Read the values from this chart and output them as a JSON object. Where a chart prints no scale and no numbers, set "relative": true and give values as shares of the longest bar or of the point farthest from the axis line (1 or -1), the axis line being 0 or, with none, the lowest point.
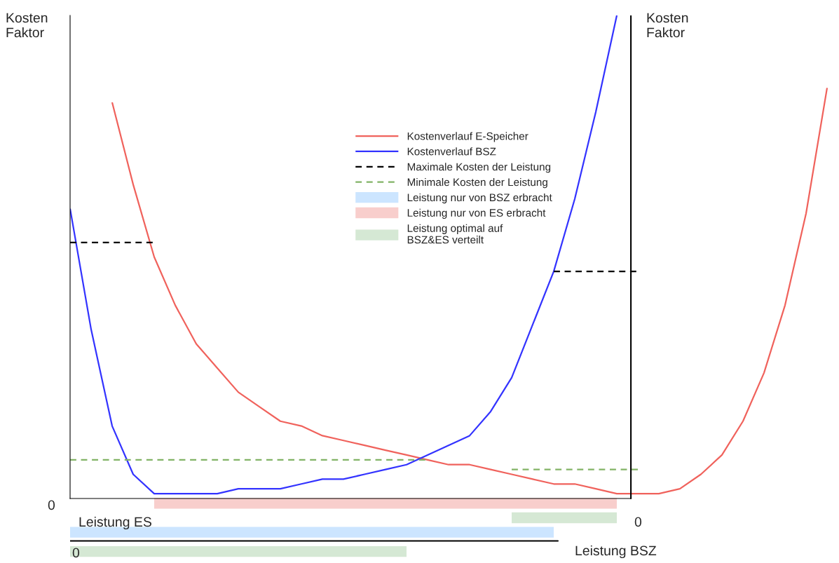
{
  "chart_data": {
    "type": "line",
    "relative": true,
    "ylabel": "Kosten\nFaktor",
    "y2label": "Kosten\nFaktor",
    "xlabel": "Leistung BSZ",
    "legend": "center",
    "categories": [
      null,
      null,
      null,
      null,
      null,
      null,
      null,
      null,
      null,
      null,
      null,
      null,
      null,
      null,
      null,
      null,
      null,
      null,
      null,
      null,
      null,
      null,
      null,
      null,
      null,
      null,
      null,
      null,
      null,
      null,
      null,
      null,
      null,
      null,
      null,
      null,
      null
    ],
    "annotations": [
      "0",
      "Leistung ES",
      "0",
      "0"
    ],
    "series": [
      {
        "name": "Kostenverlauf E-Speicher",
        "color": "#f0625c",
        "values": [
          null,
          null,
          0.82,
          0.65,
          0.5,
          0.4,
          0.32,
          0.27,
          0.22,
          0.19,
          0.16,
          0.15,
          0.13,
          0.12,
          0.11,
          0.1,
          0.09,
          0.08,
          0.07,
          0.07,
          0.06,
          0.05,
          0.04,
          0.03,
          0.03,
          0.02,
          0.01,
          0.01,
          0.01,
          0.02,
          0.05,
          0.09,
          0.16,
          0.26,
          0.4,
          0.59,
          0.85
        ]
      },
      {
        "name": "Kostenverlauf BSZ",
        "color": "#3333ff",
        "values": [
          0.6,
          0.35,
          0.15,
          0.05,
          0.01,
          0.01,
          0.01,
          0.01,
          0.02,
          0.02,
          0.02,
          0.03,
          0.04,
          0.04,
          0.05,
          0.06,
          0.07,
          0.09,
          0.11,
          0.13,
          0.18,
          0.25,
          0.36,
          0.47,
          0.62,
          0.8,
          1.0,
          null,
          null,
          null,
          null,
          null,
          null,
          null,
          null,
          null,
          null
        ]
      },
      {
        "name": "Maximale Kosten der Leistung",
        "color": "#000000",
        "line_style": "dashed",
        "values": [
          0.53,
          0.53,
          0.53,
          0.53,
          0.53,
          null,
          null,
          null,
          null,
          null,
          null,
          null,
          null,
          null,
          null,
          null,
          null,
          null,
          null,
          null,
          null,
          null,
          null,
          0.47,
          0.47,
          0.47,
          0.47,
          0.47,
          null,
          null,
          null,
          null,
          null,
          null,
          null,
          null,
          null
        ]
      },
      {
        "name": "Minimale Kosten der Leistung",
        "color": "#82b366",
        "line_style": "dashed",
        "values": [
          0.08,
          0.08,
          0.08,
          0.08,
          0.08,
          0.08,
          0.08,
          0.08,
          0.08,
          0.08,
          0.08,
          0.08,
          0.08,
          0.08,
          0.08,
          0.08,
          0.08,
          0.08,
          null,
          null,
          null,
          0.06,
          0.06,
          0.06,
          0.06,
          0.06,
          0.06,
          0.06,
          null,
          null,
          null,
          null,
          null,
          null,
          null,
          null,
          null
        ]
      },
      {
        "name": "Leistung nur von BSZ erbracht",
        "color": "#cce5ff",
        "values": [
          -0.07,
          -0.07,
          -0.07,
          -0.07,
          -0.07,
          -0.07,
          -0.07,
          -0.07,
          -0.07,
          -0.07,
          -0.07,
          -0.07,
          -0.07,
          -0.07,
          -0.07,
          -0.07,
          -0.07,
          -0.07,
          -0.07,
          -0.07,
          -0.07,
          -0.07,
          -0.07,
          -0.07,
          null,
          null,
          null,
          null,
          null,
          null,
          null,
          null,
          null,
          null,
          null,
          null,
          null
        ]
      },
      {
        "name": "Leistung nur von ES erbracht",
        "color": "#f8cecc",
        "values": [
          null,
          null,
          null,
          null,
          -0.01,
          -0.01,
          -0.01,
          -0.01,
          -0.01,
          -0.01,
          -0.01,
          -0.01,
          -0.01,
          -0.01,
          -0.01,
          -0.01,
          -0.01,
          -0.01,
          -0.01,
          -0.01,
          -0.01,
          -0.01,
          -0.01,
          -0.01,
          -0.01,
          -0.01,
          -0.01,
          null,
          null,
          null,
          null,
          null,
          null,
          null,
          null,
          null,
          null
        ]
      },
      {
        "name": "Leistung optimal auf\nBSZ&ES verteilt",
        "color": "#d5e8d4",
        "values": [
          -0.11,
          -0.11,
          -0.11,
          -0.11,
          -0.11,
          -0.11,
          -0.11,
          -0.11,
          -0.11,
          -0.11,
          -0.11,
          -0.11,
          -0.11,
          -0.11,
          -0.11,
          -0.11,
          -0.11,
          null,
          null,
          null,
          null,
          -0.04,
          -0.04,
          -0.04,
          -0.04,
          -0.04,
          -0.04,
          null,
          null,
          null,
          null,
          null,
          null,
          null,
          null,
          null,
          null
        ]
      }
    ]
  }
}
